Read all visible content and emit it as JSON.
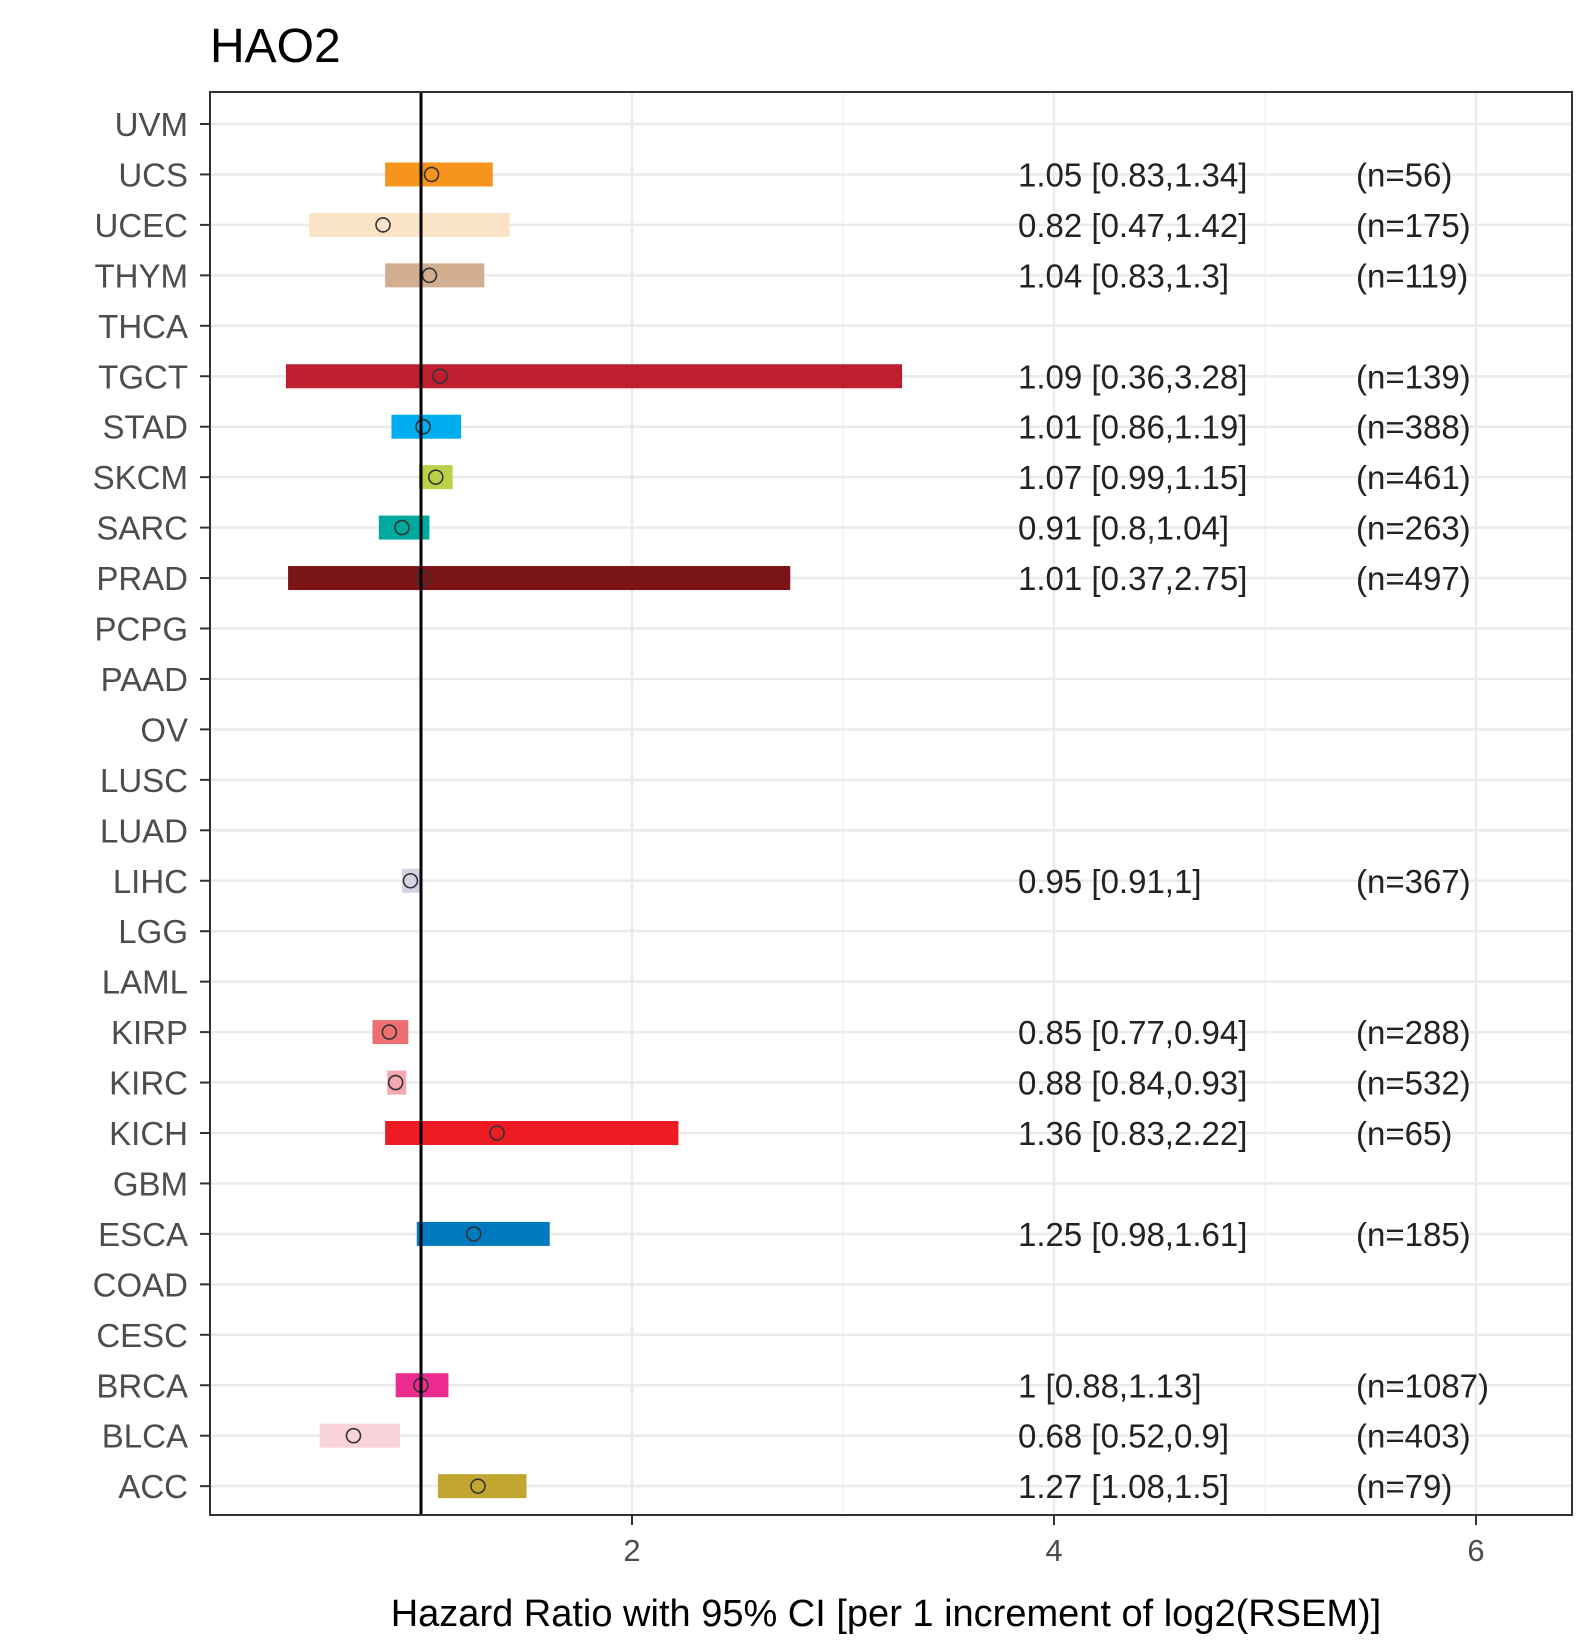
{
  "chart_data": {
    "type": "forest",
    "title": "HAO2",
    "xlabel": "Hazard Ratio with 95% CI [per 1 increment of log2(RSEM)]",
    "ylabel": "",
    "xlim": [
      0.0,
      6.5
    ],
    "xticks": [
      2,
      4,
      6
    ],
    "xtick_labels": [
      "2",
      "4",
      "6"
    ],
    "reference_line": 1.0,
    "grid": true,
    "categories": [
      "UVM",
      "UCS",
      "UCEC",
      "THYM",
      "THCA",
      "TGCT",
      "STAD",
      "SKCM",
      "SARC",
      "PRAD",
      "PCPG",
      "PAAD",
      "OV",
      "LUSC",
      "LUAD",
      "LIHC",
      "LGG",
      "LAML",
      "KIRP",
      "KIRC",
      "KICH",
      "GBM",
      "ESCA",
      "COAD",
      "CESC",
      "BRCA",
      "BLCA",
      "ACC"
    ],
    "rows": [
      {
        "cancer": "UVM",
        "hr": null,
        "lower": null,
        "upper": null,
        "label": "",
        "n": "",
        "color": ""
      },
      {
        "cancer": "UCS",
        "hr": 1.05,
        "lower": 0.83,
        "upper": 1.34,
        "label": "1.05 [0.83,1.34]",
        "n": "(n=56)",
        "color": "#F7941D"
      },
      {
        "cancer": "UCEC",
        "hr": 0.82,
        "lower": 0.47,
        "upper": 1.42,
        "label": "0.82 [0.47,1.42]",
        "n": "(n=175)",
        "color": "#FBE3C8"
      },
      {
        "cancer": "THYM",
        "hr": 1.04,
        "lower": 0.83,
        "upper": 1.3,
        "label": "1.04 [0.83,1.3]",
        "n": "(n=119)",
        "color": "#D2AE91"
      },
      {
        "cancer": "THCA",
        "hr": null,
        "lower": null,
        "upper": null,
        "label": "",
        "n": "",
        "color": ""
      },
      {
        "cancer": "TGCT",
        "hr": 1.09,
        "lower": 0.36,
        "upper": 3.28,
        "label": "1.09 [0.36,3.28]",
        "n": "(n=139)",
        "color": "#BE1E2D"
      },
      {
        "cancer": "STAD",
        "hr": 1.01,
        "lower": 0.86,
        "upper": 1.19,
        "label": "1.01 [0.86,1.19]",
        "n": "(n=388)",
        "color": "#00AEEF"
      },
      {
        "cancer": "SKCM",
        "hr": 1.07,
        "lower": 0.99,
        "upper": 1.15,
        "label": "1.07 [0.99,1.15]",
        "n": "(n=461)",
        "color": "#BBD046"
      },
      {
        "cancer": "SARC",
        "hr": 0.91,
        "lower": 0.8,
        "upper": 1.04,
        "label": "0.91 [0.8,1.04]",
        "n": "(n=263)",
        "color": "#00A99D"
      },
      {
        "cancer": "PRAD",
        "hr": 1.01,
        "lower": 0.37,
        "upper": 2.75,
        "label": "1.01 [0.37,2.75]",
        "n": "(n=497)",
        "color": "#7B1416"
      },
      {
        "cancer": "PCPG",
        "hr": null,
        "lower": null,
        "upper": null,
        "label": "",
        "n": "",
        "color": ""
      },
      {
        "cancer": "PAAD",
        "hr": null,
        "lower": null,
        "upper": null,
        "label": "",
        "n": "",
        "color": ""
      },
      {
        "cancer": "OV",
        "hr": null,
        "lower": null,
        "upper": null,
        "label": "",
        "n": "",
        "color": ""
      },
      {
        "cancer": "LUSC",
        "hr": null,
        "lower": null,
        "upper": null,
        "label": "",
        "n": "",
        "color": ""
      },
      {
        "cancer": "LUAD",
        "hr": null,
        "lower": null,
        "upper": null,
        "label": "",
        "n": "",
        "color": ""
      },
      {
        "cancer": "LIHC",
        "hr": 0.95,
        "lower": 0.91,
        "upper": 1.0,
        "label": "0.95 [0.91,1]",
        "n": "(n=367)",
        "color": "#D3D3E5"
      },
      {
        "cancer": "LGG",
        "hr": null,
        "lower": null,
        "upper": null,
        "label": "",
        "n": "",
        "color": ""
      },
      {
        "cancer": "LAML",
        "hr": null,
        "lower": null,
        "upper": null,
        "label": "",
        "n": "",
        "color": ""
      },
      {
        "cancer": "KIRP",
        "hr": 0.85,
        "lower": 0.77,
        "upper": 0.94,
        "label": "0.85 [0.77,0.94]",
        "n": "(n=288)",
        "color": "#EC7073"
      },
      {
        "cancer": "KIRC",
        "hr": 0.88,
        "lower": 0.84,
        "upper": 0.93,
        "label": "0.88 [0.84,0.93]",
        "n": "(n=532)",
        "color": "#F4A8B0"
      },
      {
        "cancer": "KICH",
        "hr": 1.36,
        "lower": 0.83,
        "upper": 2.22,
        "label": "1.36 [0.83,2.22]",
        "n": "(n=65)",
        "color": "#ED1C24"
      },
      {
        "cancer": "GBM",
        "hr": null,
        "lower": null,
        "upper": null,
        "label": "",
        "n": "",
        "color": ""
      },
      {
        "cancer": "ESCA",
        "hr": 1.25,
        "lower": 0.98,
        "upper": 1.61,
        "label": "1.25 [0.98,1.61]",
        "n": "(n=185)",
        "color": "#0079BF"
      },
      {
        "cancer": "COAD",
        "hr": null,
        "lower": null,
        "upper": null,
        "label": "",
        "n": "",
        "color": ""
      },
      {
        "cancer": "CESC",
        "hr": null,
        "lower": null,
        "upper": null,
        "label": "",
        "n": "",
        "color": ""
      },
      {
        "cancer": "BRCA",
        "hr": 1.0,
        "lower": 0.88,
        "upper": 1.13,
        "label": "1 [0.88,1.13]",
        "n": "(n=1087)",
        "color": "#EC2A90"
      },
      {
        "cancer": "BLCA",
        "hr": 0.68,
        "lower": 0.52,
        "upper": 0.9,
        "label": "0.68 [0.52,0.9]",
        "n": "(n=403)",
        "color": "#F9D2DA"
      },
      {
        "cancer": "ACC",
        "hr": 1.27,
        "lower": 1.08,
        "upper": 1.5,
        "label": "1.27 [1.08,1.5]",
        "n": "(n=79)",
        "color": "#C1A72F"
      }
    ]
  }
}
